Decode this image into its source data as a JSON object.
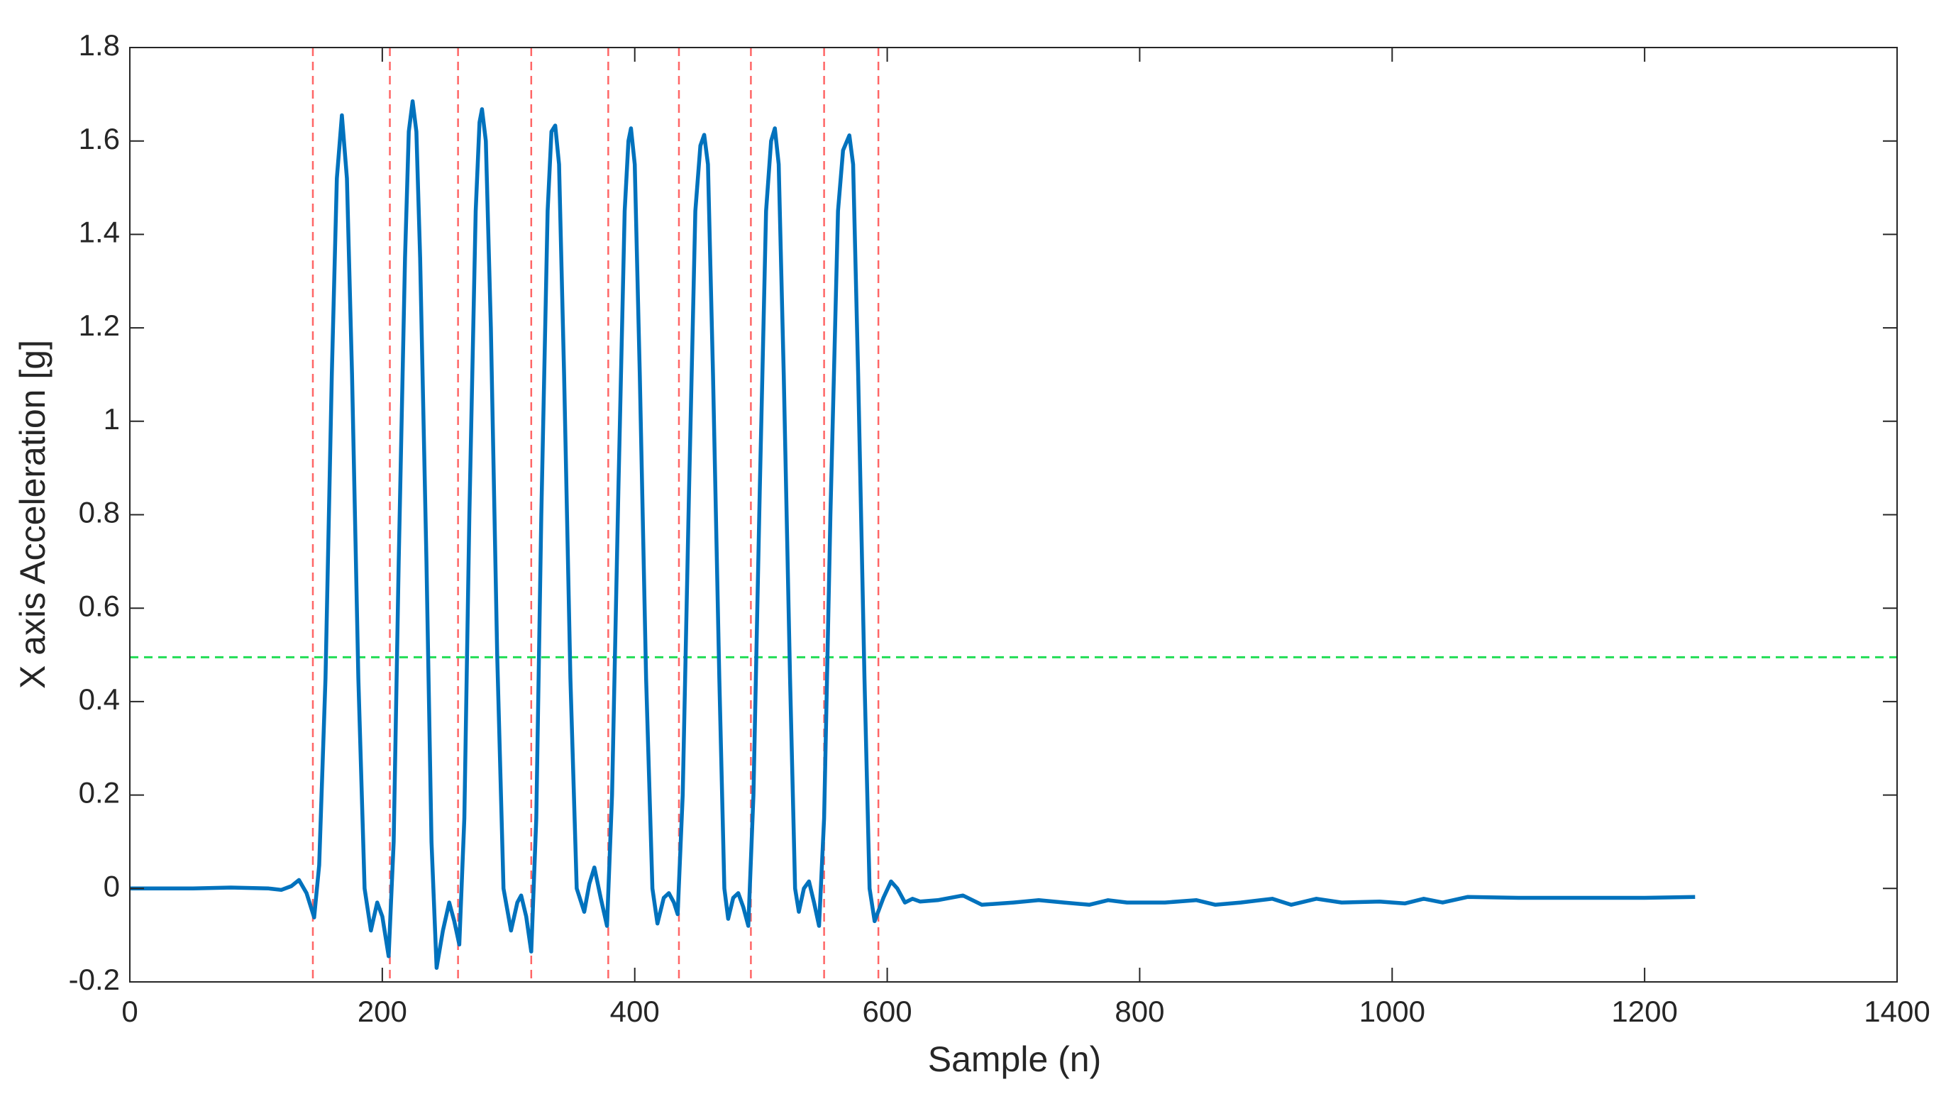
{
  "chart_data": {
    "type": "line",
    "x_label": "Sample (n)",
    "y_label": "X axis Acceleration [g]",
    "xlim": [
      0,
      1400
    ],
    "xticks": [
      0,
      200,
      400,
      600,
      800,
      1000,
      1200,
      1400
    ],
    "ylim": [
      -0.2,
      1.8
    ],
    "yticks": [
      -0.2,
      0,
      0.2,
      0.4,
      0.6,
      0.8,
      1,
      1.2,
      1.4,
      1.6,
      1.8
    ],
    "series": [
      {
        "color": "#0072bd",
        "x": [
          0,
          50,
          80,
          110,
          120,
          128,
          134,
          140,
          146,
          150,
          155,
          160,
          164,
          168,
          172,
          176,
          181,
          186,
          191,
          196,
          200,
          205,
          209,
          213,
          218,
          221,
          224,
          227,
          230,
          235,
          239,
          243,
          248,
          253,
          257,
          261,
          265,
          269,
          274,
          277,
          279,
          282,
          286,
          291,
          296,
          302,
          307,
          310,
          314,
          318,
          322,
          326,
          331,
          334,
          337,
          340,
          344,
          349,
          354,
          360,
          364,
          368,
          373,
          378,
          382,
          387,
          392,
          395,
          397,
          400,
          404,
          409,
          414,
          418,
          423,
          427,
          431,
          434,
          438,
          443,
          448,
          452,
          455,
          458,
          462,
          467,
          471,
          474,
          478,
          482,
          486,
          490,
          494,
          499,
          504,
          508,
          511,
          514,
          518,
          523,
          527,
          530,
          534,
          538,
          542,
          546,
          550,
          555,
          561,
          565,
          570,
          573,
          577,
          582,
          586,
          590,
          597,
          603,
          608,
          614,
          620,
          626,
          640,
          660,
          675,
          700,
          720,
          740,
          760,
          775,
          790,
          820,
          845,
          860,
          880,
          905,
          920,
          940,
          960,
          990,
          1010,
          1025,
          1040,
          1060,
          1100,
          1150,
          1200,
          1240
        ],
        "values": [
          0,
          0,
          0.002,
          0,
          -0.003,
          0.005,
          0.018,
          -0.01,
          -0.062,
          0.05,
          0.45,
          1.1,
          1.52,
          1.655,
          1.52,
          1.1,
          0.45,
          0,
          -0.09,
          -0.03,
          -0.06,
          -0.145,
          0.1,
          0.7,
          1.35,
          1.62,
          1.685,
          1.62,
          1.35,
          0.7,
          0.1,
          -0.17,
          -0.09,
          -0.03,
          -0.07,
          -0.12,
          0.15,
          0.8,
          1.45,
          1.64,
          1.668,
          1.6,
          1.2,
          0.5,
          0,
          -0.09,
          -0.03,
          -0.015,
          -0.06,
          -0.135,
          0.15,
          0.8,
          1.45,
          1.62,
          1.633,
          1.55,
          1.1,
          0.45,
          0,
          -0.05,
          0.01,
          0.045,
          -0.02,
          -0.08,
          0.2,
          0.85,
          1.45,
          1.6,
          1.627,
          1.55,
          1.1,
          0.45,
          0,
          -0.075,
          -0.02,
          -0.01,
          -0.03,
          -0.055,
          0.2,
          0.85,
          1.45,
          1.59,
          1.613,
          1.55,
          1.1,
          0.45,
          0,
          -0.065,
          -0.02,
          -0.01,
          -0.04,
          -0.08,
          0.2,
          0.85,
          1.45,
          1.6,
          1.627,
          1.55,
          1.1,
          0.45,
          0,
          -0.05,
          0,
          0.015,
          -0.03,
          -0.08,
          0.15,
          0.8,
          1.45,
          1.58,
          1.612,
          1.55,
          1.1,
          0.45,
          0,
          -0.07,
          -0.02,
          0.015,
          0,
          -0.03,
          -0.022,
          -0.028,
          -0.025,
          -0.015,
          -0.035,
          -0.03,
          -0.025,
          -0.03,
          -0.035,
          -0.025,
          -0.03,
          -0.03,
          -0.025,
          -0.035,
          -0.03,
          -0.022,
          -0.035,
          -0.022,
          -0.03,
          -0.028,
          -0.032,
          -0.022,
          -0.03,
          -0.018,
          -0.02,
          -0.02,
          -0.02,
          -0.018
        ]
      }
    ],
    "vlines": {
      "color": "#ff6666",
      "x": [
        145,
        206,
        260,
        318,
        379,
        435,
        492,
        550,
        593
      ]
    },
    "hline": {
      "color": "#22dd55",
      "y": 0.495
    }
  }
}
